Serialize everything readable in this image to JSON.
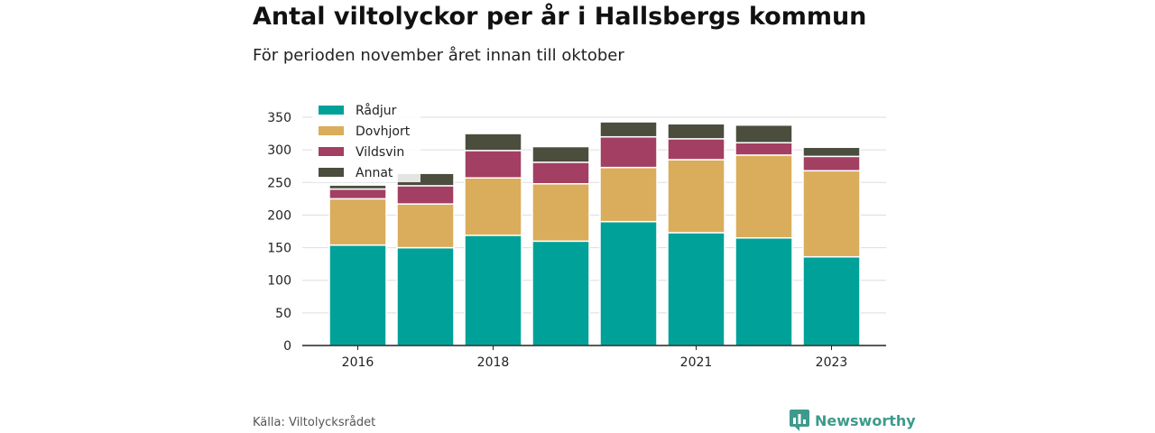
{
  "header": {
    "title": "Antal viltolyckor per år i Hallsbergs kommun",
    "subtitle": "För perioden november året innan till oktober"
  },
  "footer": {
    "source": "Källa: Viltolycksrådet",
    "brand": "Newsworthy"
  },
  "colors": {
    "radjur": "#00a199",
    "dovhjort": "#d9ad5b",
    "vildsvin": "#a33f63",
    "annat": "#4b4d3d",
    "grid": "#dddddd",
    "axis": "#222222",
    "brand": "#3e9a8c"
  },
  "chart_data": {
    "type": "bar",
    "stacked": true,
    "categories": [
      "2016",
      "2017",
      "2018",
      "2019",
      "2020",
      "2021",
      "2022",
      "2023"
    ],
    "x_tick_labels": [
      "2016",
      "",
      "2018",
      "",
      "",
      "2021",
      "",
      "2023"
    ],
    "series": [
      {
        "name": "Rådjur",
        "color": "#00a199",
        "values": [
          154,
          150,
          169,
          160,
          190,
          173,
          165,
          136
        ]
      },
      {
        "name": "Dovhjort",
        "color": "#d9ad5b",
        "values": [
          71,
          67,
          88,
          88,
          83,
          112,
          127,
          132
        ]
      },
      {
        "name": "Vildsvin",
        "color": "#a33f63",
        "values": [
          15,
          28,
          42,
          33,
          47,
          32,
          19,
          22
        ]
      },
      {
        "name": "Annat",
        "color": "#4b4d3d",
        "values": [
          6,
          19,
          26,
          24,
          23,
          23,
          27,
          14
        ]
      }
    ],
    "ylim": [
      0,
      350
    ],
    "yticks": [
      0,
      50,
      100,
      150,
      200,
      250,
      300,
      350
    ],
    "grid": true,
    "legend": "top-left"
  }
}
